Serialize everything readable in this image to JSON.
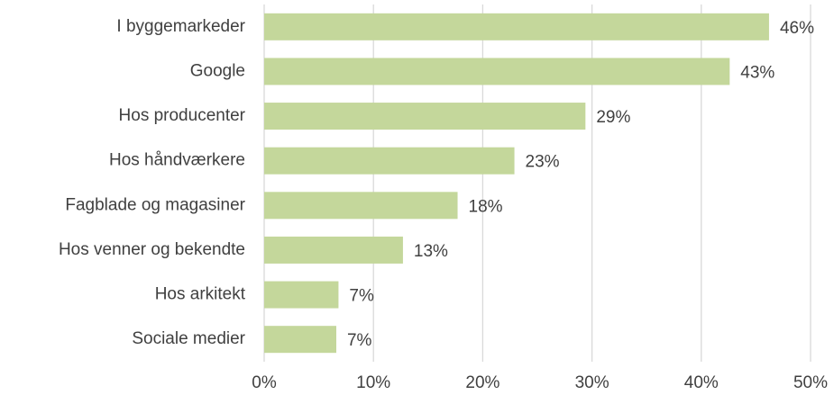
{
  "chart_data": {
    "type": "barh",
    "categories": [
      "I byggemarkeder",
      "Google",
      "Hos producenter",
      "Hos håndværkere",
      "Fagblade og magasiner",
      "Hos venner og bekendte",
      "Hos arkitekt",
      "Sociale medier"
    ],
    "values": [
      46.2,
      42.6,
      29.4,
      22.9,
      17.7,
      12.7,
      6.8,
      6.6
    ],
    "value_labels": [
      "46%",
      "43%",
      "29%",
      "23%",
      "18%",
      "13%",
      "7%",
      "7%"
    ],
    "color": "#c4d79b",
    "xlim": [
      0,
      50
    ],
    "xticks": [
      {
        "value": 0,
        "label": "0%"
      },
      {
        "value": 10,
        "label": "10%"
      },
      {
        "value": 20,
        "label": "20%"
      },
      {
        "value": 30,
        "label": "30%"
      },
      {
        "value": 40,
        "label": "40%"
      },
      {
        "value": 50,
        "label": "50%"
      }
    ],
    "grid": true
  }
}
